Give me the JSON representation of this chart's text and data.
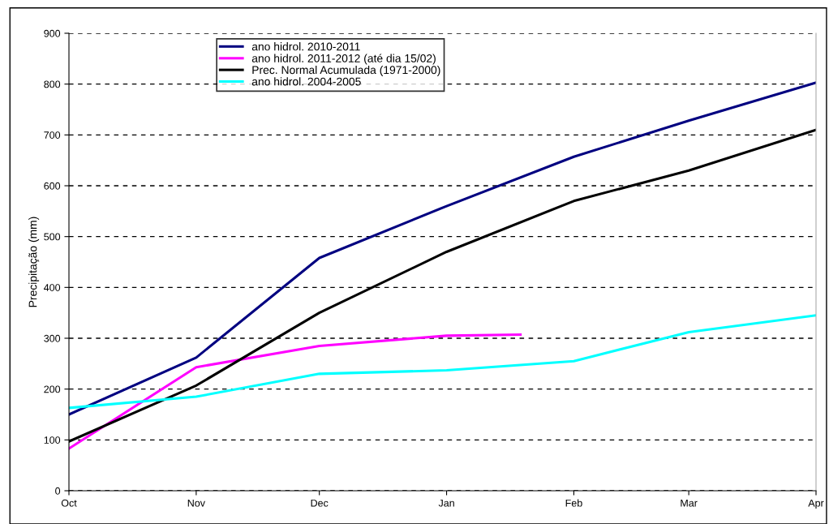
{
  "chart_data": {
    "type": "line",
    "ylabel": "Precipitação (mm)",
    "x": [
      "2010-10-01",
      "2010-11-01",
      "2010-12-01",
      "2011-01-01",
      "2011-02-01",
      "2011-03-01",
      "2011-04-01"
    ],
    "xlim": [
      "2010-10-01",
      "2011-04-01"
    ],
    "xticks": [
      {
        "value": "2010-10-01",
        "label": "Oct"
      },
      {
        "value": "2010-11-01",
        "label": "Nov"
      },
      {
        "value": "2010-12-01",
        "label": "Dec"
      },
      {
        "value": "2011-01-01",
        "label": "Jan"
      },
      {
        "value": "2011-02-01",
        "label": "Feb"
      },
      {
        "value": "2011-03-01",
        "label": "Mar"
      },
      {
        "value": "2011-04-01",
        "label": "Apr"
      }
    ],
    "ylim": [
      0,
      900
    ],
    "yticks": [
      0,
      100,
      200,
      300,
      400,
      500,
      600,
      700,
      800,
      900
    ],
    "grid": "y",
    "legend": "top",
    "marker": "none",
    "line_style": "solid",
    "series": [
      {
        "name": "ano hidrol. 2010-2011",
        "color": "#000080",
        "values": [
          150,
          262,
          458,
          560,
          657,
          728,
          803
        ]
      },
      {
        "name": "ano hidrol. 2011-2012 (até dia 15/02)",
        "color": "#ff00ff",
        "x": [
          "2010-10-01",
          "2010-11-01",
          "2010-12-01",
          "2011-01-01",
          "2011-01-19"
        ],
        "values": [
          83,
          243,
          285,
          305,
          307
        ]
      },
      {
        "name": "Prec. Normal Acumulada (1971-2000)",
        "color": "#000000",
        "values": [
          97,
          207,
          350,
          470,
          570,
          630,
          710
        ]
      },
      {
        "name": "ano hidrol. 2004-2005",
        "color": "#00ffff",
        "values": [
          163,
          185,
          230,
          237,
          255,
          312,
          345
        ]
      }
    ]
  }
}
